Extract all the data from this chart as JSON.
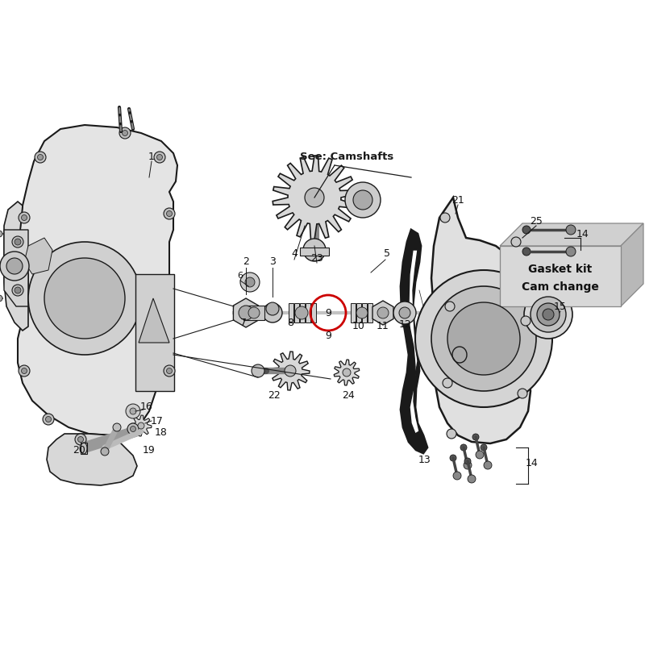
{
  "bg_color": "#ffffff",
  "see_camshafts_text": "See: Camshafts",
  "gasket_box_text": [
    "Gasket kit",
    "Cam change"
  ],
  "circle_highlight_color": "#cc0000",
  "line_color": "#1a1a1a",
  "part_label_color": "#111111",
  "fill_light": "#e8e8e8",
  "fill_mid": "#cccccc",
  "fill_dark": "#aaaaaa",
  "gasket_fill": "#d4d4d4",
  "gasket_light": "#e8e8e8",
  "gasket_dark": "#b0b0b0"
}
